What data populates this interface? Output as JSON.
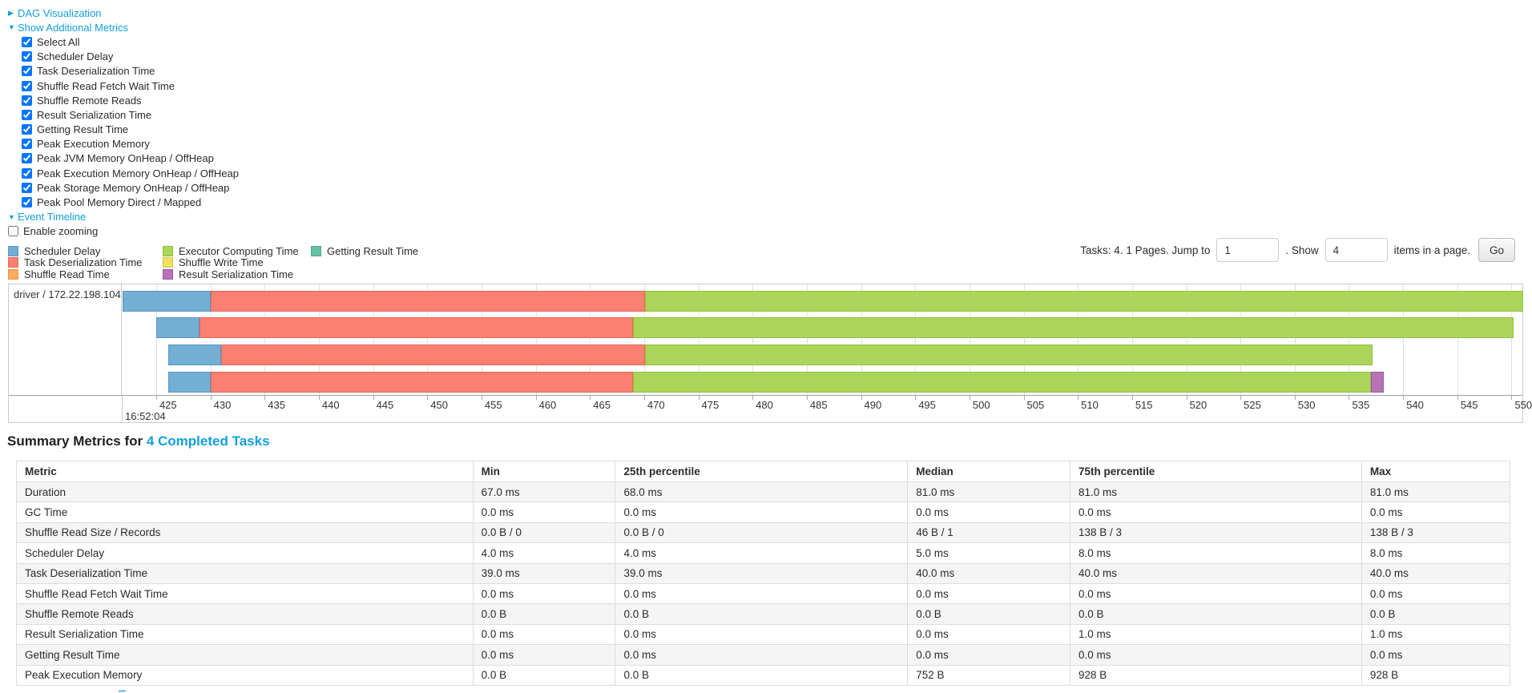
{
  "colors": {
    "link": "#13a0db",
    "grid": "#e2e2e2",
    "axis_line": "#9e9e9e",
    "chart_border": "#cccccc",
    "table_border": "#dddddd",
    "row_stripe": "#f5f5f5",
    "series": {
      "scheduler_delay": {
        "fill": "#73afd3",
        "border": "#5697c4"
      },
      "task_deserialization": {
        "fill": "#fb8072",
        "border": "#e8685c"
      },
      "shuffle_read": {
        "fill": "#fbae5d",
        "border": "#e79a43"
      },
      "executor_computing": {
        "fill": "#abd559",
        "border": "#93c23e"
      },
      "shuffle_write": {
        "fill": "#f2e25f",
        "border": "#d9c840"
      },
      "result_serialization": {
        "fill": "#b873b8",
        "border": "#9c5aa0"
      },
      "getting_result": {
        "fill": "#66c2a5",
        "border": "#4ea88b"
      }
    }
  },
  "dag_section": {
    "arrow": "▶",
    "label": "DAG Visualization"
  },
  "metrics_section": {
    "arrow": "▼",
    "label": "Show Additional Metrics",
    "checkboxes": [
      {
        "label": "Select All",
        "checked": true
      },
      {
        "label": "Scheduler Delay",
        "checked": true
      },
      {
        "label": "Task Deserialization Time",
        "checked": true
      },
      {
        "label": "Shuffle Read Fetch Wait Time",
        "checked": true
      },
      {
        "label": "Shuffle Remote Reads",
        "checked": true
      },
      {
        "label": "Result Serialization Time",
        "checked": true
      },
      {
        "label": "Getting Result Time",
        "checked": true
      },
      {
        "label": "Peak Execution Memory",
        "checked": true
      },
      {
        "label": "Peak JVM Memory OnHeap / OffHeap",
        "checked": true
      },
      {
        "label": "Peak Execution Memory OnHeap / OffHeap",
        "checked": true
      },
      {
        "label": "Peak Storage Memory OnHeap / OffHeap",
        "checked": true
      },
      {
        "label": "Peak Pool Memory Direct / Mapped",
        "checked": true
      }
    ]
  },
  "timeline_section": {
    "arrow": "▼",
    "label": "Event Timeline",
    "enable_zooming": {
      "label": "Enable zooming",
      "checked": false
    }
  },
  "legend": {
    "columns": [
      [
        {
          "key": "scheduler_delay",
          "label": "Scheduler Delay"
        },
        {
          "key": "task_deserialization",
          "label": "Task Deserialization Time"
        },
        {
          "key": "shuffle_read",
          "label": "Shuffle Read Time"
        }
      ],
      [
        {
          "key": "executor_computing",
          "label": "Executor Computing Time"
        },
        {
          "key": "shuffle_write",
          "label": "Shuffle Write Time"
        },
        {
          "key": "result_serialization",
          "label": "Result Serialization Time"
        }
      ],
      [
        {
          "key": "getting_result",
          "label": "Getting Result Time"
        }
      ]
    ]
  },
  "pagination": {
    "summary_text": "Tasks: 4. 1 Pages. Jump to",
    "jump_value": "1",
    "show_label": ". Show",
    "show_value": "4",
    "items_label": "items in a page.",
    "go_label": "Go"
  },
  "chart_data": {
    "type": "timeline",
    "row_label": "driver / 172.22.198.104",
    "time_label": "16:52:04",
    "x_domain": [
      421.9,
      551.0
    ],
    "x_ticks": [
      425,
      430,
      435,
      440,
      445,
      450,
      455,
      460,
      465,
      470,
      475,
      480,
      485,
      490,
      495,
      500,
      505,
      510,
      515,
      520,
      525,
      530,
      535,
      540,
      545,
      550
    ],
    "tasks": [
      {
        "start": 421.9,
        "segments": [
          {
            "series": "scheduler_delay",
            "end": 430.0
          },
          {
            "series": "task_deserialization",
            "end": 470.1
          },
          {
            "series": "executor_computing",
            "end": 551.1
          }
        ]
      },
      {
        "start": 425.0,
        "segments": [
          {
            "series": "scheduler_delay",
            "end": 429.0
          },
          {
            "series": "task_deserialization",
            "end": 469.0
          },
          {
            "series": "executor_computing",
            "end": 550.2
          }
        ]
      },
      {
        "start": 426.1,
        "segments": [
          {
            "series": "scheduler_delay",
            "end": 431.0
          },
          {
            "series": "task_deserialization",
            "end": 470.1
          },
          {
            "series": "executor_computing",
            "end": 537.2
          }
        ]
      },
      {
        "start": 426.1,
        "segments": [
          {
            "series": "scheduler_delay",
            "end": 430.0
          },
          {
            "series": "task_deserialization",
            "end": 469.0
          },
          {
            "series": "executor_computing",
            "end": 537.0
          },
          {
            "series": "result_serialization",
            "end": 538.2
          }
        ]
      }
    ]
  },
  "summary_table": {
    "title_prefix": "Summary Metrics for ",
    "title_link": "4 Completed Tasks",
    "columns": [
      "Metric",
      "Min",
      "25th percentile",
      "Median",
      "75th percentile",
      "Max"
    ],
    "rows": [
      {
        "metric": "Duration",
        "values": [
          "67.0 ms",
          "68.0 ms",
          "81.0 ms",
          "81.0 ms",
          "81.0 ms"
        ]
      },
      {
        "metric": "GC Time",
        "values": [
          "0.0 ms",
          "0.0 ms",
          "0.0 ms",
          "0.0 ms",
          "0.0 ms"
        ]
      },
      {
        "metric": "Shuffle Read Size / Records",
        "values": [
          "0.0 B / 0",
          "0.0 B / 0",
          "46 B / 1",
          "138 B / 3",
          "138 B / 3"
        ]
      },
      {
        "metric": "Scheduler Delay",
        "values": [
          "4.0 ms",
          "4.0 ms",
          "5.0 ms",
          "8.0 ms",
          "8.0 ms"
        ]
      },
      {
        "metric": "Task Deserialization Time",
        "values": [
          "39.0 ms",
          "39.0 ms",
          "40.0 ms",
          "40.0 ms",
          "40.0 ms"
        ]
      },
      {
        "metric": "Shuffle Read Fetch Wait Time",
        "values": [
          "0.0 ms",
          "0.0 ms",
          "0.0 ms",
          "0.0 ms",
          "0.0 ms"
        ]
      },
      {
        "metric": "Shuffle Remote Reads",
        "values": [
          "0.0 B",
          "0.0 B",
          "0.0 B",
          "0.0 B",
          "0.0 B"
        ]
      },
      {
        "metric": "Result Serialization Time",
        "values": [
          "0.0 ms",
          "0.0 ms",
          "0.0 ms",
          "1.0 ms",
          "1.0 ms"
        ]
      },
      {
        "metric": "Getting Result Time",
        "values": [
          "0.0 ms",
          "0.0 ms",
          "0.0 ms",
          "0.0 ms",
          "0.0 ms"
        ]
      },
      {
        "metric": "Peak Execution Memory",
        "values": [
          "0.0 B",
          "0.0 B",
          "752 B",
          "928 B",
          "928 B"
        ]
      }
    ]
  }
}
